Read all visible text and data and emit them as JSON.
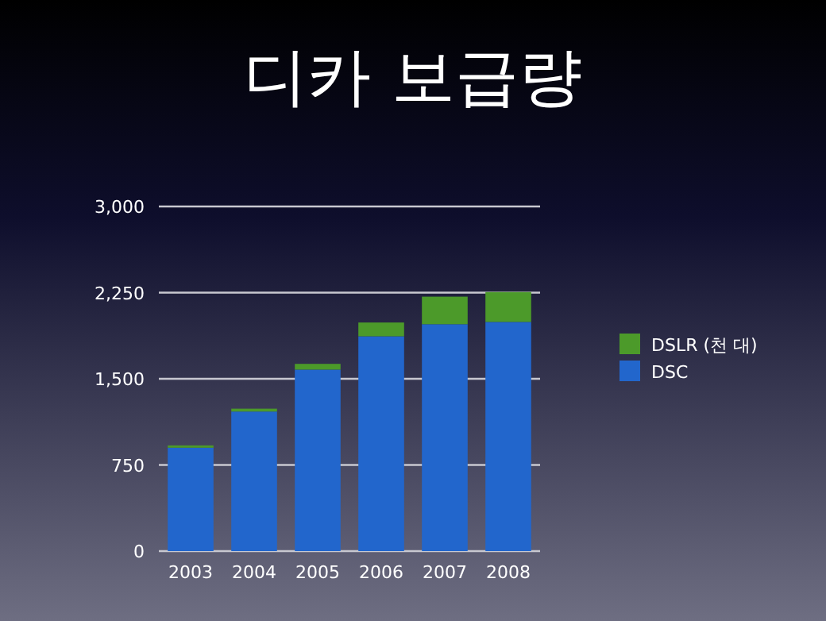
{
  "chart_data": {
    "type": "bar",
    "title": "디카 보급량",
    "stacked": true,
    "categories": [
      "2003",
      "2004",
      "2005",
      "2006",
      "2007",
      "2008"
    ],
    "series": [
      {
        "name": "DSC",
        "color": "#2266cc",
        "values": [
          900,
          1215,
          1580,
          1870,
          1975,
          1995
        ]
      },
      {
        "name": "DSLR (천 대)",
        "color": "#4c9a2a",
        "values": [
          20,
          25,
          50,
          120,
          240,
          260
        ]
      }
    ],
    "ylim": [
      0,
      3000
    ],
    "yticks": [
      {
        "value": 0,
        "label": "0"
      },
      {
        "value": 750,
        "label": "750"
      },
      {
        "value": 1500,
        "label": "1,500"
      },
      {
        "value": 2250,
        "label": "2,250"
      },
      {
        "value": 3000,
        "label": "3,000"
      }
    ],
    "grid": "y",
    "legend": "right"
  }
}
